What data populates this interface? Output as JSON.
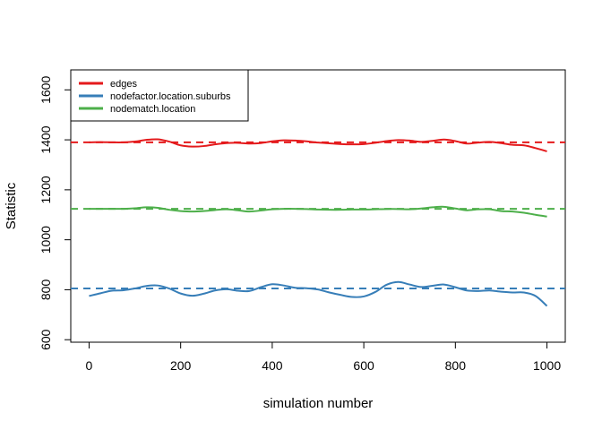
{
  "chart_data": {
    "type": "line",
    "title": "",
    "xlabel": "simulation number",
    "ylabel": "Statistic",
    "xlim": [
      -40,
      1040
    ],
    "ylim": [
      590,
      1680
    ],
    "x_ticks": [
      0,
      200,
      400,
      600,
      800,
      1000
    ],
    "y_ticks": [
      600,
      800,
      1000,
      1200,
      1400,
      1600
    ],
    "grid": false,
    "legend_position": "top-left",
    "series": [
      {
        "name": "edges",
        "color": "#E41A1C",
        "target": 1390,
        "x": [
          0,
          25,
          50,
          75,
          100,
          125,
          150,
          175,
          200,
          225,
          250,
          275,
          300,
          325,
          350,
          375,
          400,
          425,
          450,
          475,
          500,
          525,
          550,
          575,
          600,
          625,
          650,
          675,
          700,
          725,
          750,
          775,
          800,
          825,
          850,
          875,
          900,
          925,
          950,
          975,
          1000
        ],
        "values": [
          1390,
          1391,
          1390,
          1390,
          1393,
          1400,
          1402,
          1393,
          1378,
          1373,
          1375,
          1382,
          1387,
          1388,
          1385,
          1387,
          1394,
          1398,
          1397,
          1394,
          1389,
          1386,
          1383,
          1382,
          1383,
          1388,
          1395,
          1399,
          1397,
          1392,
          1396,
          1401,
          1395,
          1385,
          1389,
          1392,
          1387,
          1380,
          1378,
          1367,
          1354
        ]
      },
      {
        "name": "nodefactor.location.suburbs",
        "color": "#377EB8",
        "target": 805,
        "x": [
          0,
          25,
          50,
          75,
          100,
          125,
          150,
          175,
          200,
          225,
          250,
          275,
          300,
          325,
          350,
          375,
          400,
          425,
          450,
          475,
          500,
          525,
          550,
          575,
          600,
          625,
          650,
          675,
          700,
          725,
          750,
          775,
          800,
          825,
          850,
          875,
          900,
          925,
          950,
          975,
          1000
        ],
        "values": [
          775,
          786,
          796,
          798,
          805,
          815,
          817,
          805,
          785,
          776,
          784,
          797,
          802,
          796,
          795,
          810,
          822,
          817,
          808,
          806,
          801,
          789,
          779,
          771,
          773,
          791,
          820,
          831,
          821,
          811,
          816,
          821,
          810,
          797,
          795,
          797,
          792,
          789,
          789,
          775,
          735
        ]
      },
      {
        "name": "nodematch.location",
        "color": "#4DAF4A",
        "target": 1124,
        "x": [
          0,
          25,
          50,
          75,
          100,
          125,
          150,
          175,
          200,
          225,
          250,
          275,
          300,
          325,
          350,
          375,
          400,
          425,
          450,
          475,
          500,
          525,
          550,
          575,
          600,
          625,
          650,
          675,
          700,
          725,
          750,
          775,
          800,
          825,
          850,
          875,
          900,
          925,
          950,
          975,
          1000
        ],
        "values": [
          1124,
          1124,
          1124,
          1124,
          1126,
          1130,
          1128,
          1120,
          1115,
          1113,
          1115,
          1119,
          1122,
          1118,
          1113,
          1117,
          1122,
          1124,
          1124,
          1123,
          1121,
          1120,
          1120,
          1121,
          1121,
          1122,
          1123,
          1123,
          1122,
          1125,
          1130,
          1132,
          1125,
          1118,
          1122,
          1122,
          1115,
          1113,
          1108,
          1100,
          1093
        ]
      }
    ]
  }
}
